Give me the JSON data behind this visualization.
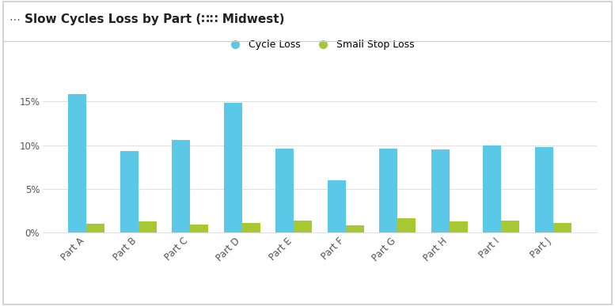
{
  "title": "Slow Cycles Loss by Part (∷∷ Midwest)",
  "categories": [
    "Part A",
    "Part B",
    "Part C",
    "Part D",
    "Part E",
    "Part F",
    "Part G",
    "Part H",
    "Part I",
    "Part J"
  ],
  "cycle_loss": [
    0.158,
    0.093,
    0.106,
    0.148,
    0.096,
    0.06,
    0.096,
    0.095,
    0.1,
    0.098
  ],
  "small_stop_loss": [
    0.01,
    0.013,
    0.009,
    0.011,
    0.014,
    0.008,
    0.016,
    0.013,
    0.014,
    0.011
  ],
  "cycle_loss_color": "#5BC8E8",
  "small_stop_loss_color": "#A8C832",
  "legend_labels": [
    "Cycle Loss",
    "Small Stop Loss"
  ],
  "ylim": [
    0,
    0.175
  ],
  "yticks": [
    0,
    0.05,
    0.1,
    0.15
  ],
  "ytick_labels": [
    "0%",
    "5%",
    "10%",
    "15%"
  ],
  "background_color": "#ffffff",
  "bar_width": 0.35,
  "title_fontsize": 11,
  "tick_fontsize": 8.5,
  "legend_fontsize": 9,
  "grid_color": "#e0e0e0",
  "border_color": "#cccccc",
  "title_icon": "∷∷"
}
